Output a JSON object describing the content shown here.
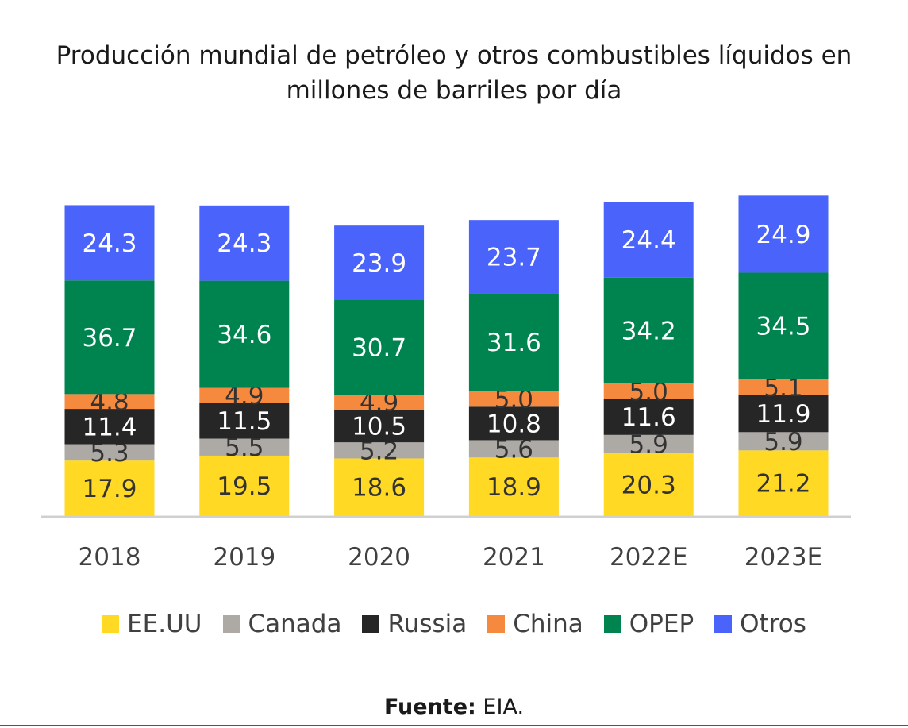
{
  "chart_data": {
    "type": "bar",
    "stacked": true,
    "title_lines": [
      "Producción mundial de petróleo y otros combustibles líquidos en",
      "millones de barriles por día"
    ],
    "categories": [
      "2018",
      "2019",
      "2020",
      "2021",
      "2022E",
      "2023E"
    ],
    "series": [
      {
        "name": "EE.UU",
        "color": "#FFD923",
        "label_color": "#333333",
        "values": [
          17.9,
          19.5,
          18.6,
          18.9,
          20.3,
          21.2
        ]
      },
      {
        "name": "Canada",
        "color": "#ADA9A5",
        "label_color": "#333333",
        "values": [
          5.3,
          5.5,
          5.2,
          5.6,
          5.9,
          5.9
        ]
      },
      {
        "name": "Russia",
        "color": "#262626",
        "label_color": "#ffffff",
        "values": [
          11.4,
          11.5,
          10.5,
          10.8,
          11.6,
          11.9
        ]
      },
      {
        "name": "China",
        "color": "#F58A3E",
        "label_color": "#333333",
        "values": [
          4.8,
          4.9,
          4.9,
          5.0,
          5.0,
          5.1
        ]
      },
      {
        "name": "OPEP",
        "color": "#00844F",
        "label_color": "#ffffff",
        "values": [
          36.7,
          34.6,
          30.7,
          31.6,
          34.2,
          34.5
        ]
      },
      {
        "name": "Otros",
        "color": "#4963FB",
        "label_color": "#ffffff",
        "values": [
          24.3,
          24.3,
          23.9,
          23.7,
          24.4,
          24.9
        ]
      }
    ],
    "xlabel": "",
    "ylabel": "",
    "ylim": [
      0,
      110
    ],
    "grid": false,
    "legend_position": "bottom"
  },
  "source": {
    "label": "Fuente:",
    "text": "EIA."
  }
}
